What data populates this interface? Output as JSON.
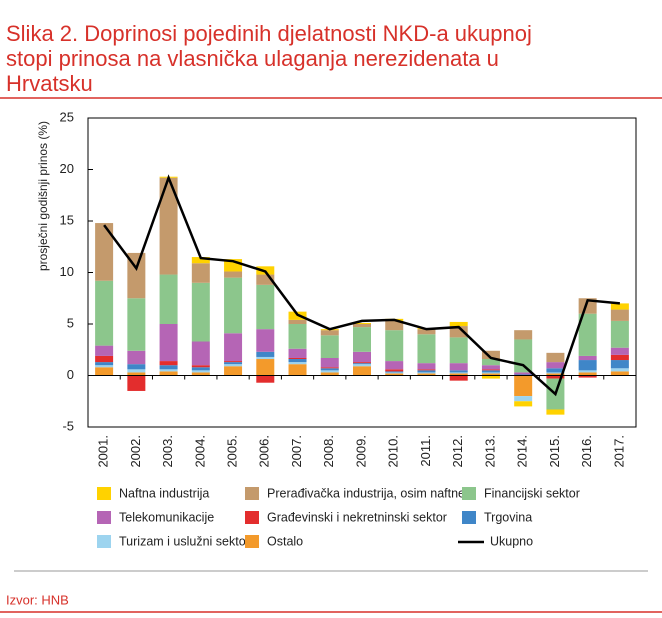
{
  "chart_data": {
    "type": "stacked-bar-line",
    "title": [
      "Slika 2. Doprinosi pojedinih djelatnosti NKD-a ukupnoj",
      "stopi prinosa na vlasnička ulaganja nerezidenata u",
      "Hrvatsku"
    ],
    "y_label": "prosječni godišnji prinos (%)",
    "source": "Izvor: HNB",
    "categories": [
      "2001.",
      "2002.",
      "2003.",
      "2004.",
      "2005.",
      "2006.",
      "2007.",
      "2008.",
      "2009.",
      "2010.",
      "2011.",
      "2012.",
      "2013.",
      "2014.",
      "2015.",
      "2016.",
      "2017."
    ],
    "ylim": [
      -5,
      25
    ],
    "yticks": [
      -5,
      0,
      5,
      10,
      15,
      20,
      25
    ],
    "series": [
      {
        "name": "Naftna industrija",
        "color": "#ffd200",
        "values": [
          0,
          0,
          0.1,
          0.6,
          1.2,
          0.8,
          0.8,
          0.1,
          0.1,
          0.2,
          0.1,
          0.4,
          -0.3,
          -0.5,
          -0.5,
          0,
          0.6
        ]
      },
      {
        "name": "Prerađivačka industrija, osim naftne",
        "color": "#c49a6c",
        "values": [
          5.6,
          4.4,
          9.4,
          1.9,
          0.6,
          1.0,
          0.4,
          0.5,
          0.3,
          0.9,
          0.5,
          1.1,
          0.8,
          0.9,
          0.9,
          1.5,
          1.1
        ]
      },
      {
        "name": "Financijski sektor",
        "color": "#8cc68c",
        "values": [
          6.3,
          5.1,
          4.8,
          5.7,
          5.4,
          4.3,
          2.4,
          2.2,
          2.4,
          3.0,
          2.8,
          2.5,
          0.6,
          3.2,
          -3.0,
          4.1,
          2.6
        ]
      },
      {
        "name": "Telekomunikacije",
        "color": "#b565b5",
        "values": [
          1.0,
          1.3,
          3.6,
          2.3,
          2.7,
          2.2,
          0.9,
          0.9,
          1.0,
          0.8,
          0.6,
          0.7,
          0.4,
          0.2,
          0.6,
          0.4,
          0.7
        ]
      },
      {
        "name": "Građevinski i nekretninski sektor",
        "color": "#e32d2d",
        "values": [
          0.6,
          -1.5,
          0.4,
          0.2,
          0.1,
          -0.7,
          0.1,
          0.1,
          0.1,
          0.2,
          0.1,
          -0.5,
          0.1,
          0,
          -0.3,
          -0.2,
          0.5
        ]
      },
      {
        "name": "Trgovina",
        "color": "#3f86c8",
        "values": [
          0.3,
          0.5,
          0.4,
          0.3,
          0.2,
          0.5,
          0.3,
          0.2,
          0.1,
          0.1,
          0.2,
          0.2,
          0.2,
          0.1,
          0.4,
          1.0,
          0.8
        ]
      },
      {
        "name": "Turizam i uslužni sektor",
        "color": "#9dd4ef",
        "values": [
          0.2,
          0.3,
          0.2,
          0.2,
          0.2,
          0.2,
          0.2,
          0.2,
          0.2,
          0.1,
          0.1,
          0.1,
          0.1,
          -0.5,
          0.1,
          0.2,
          0.3
        ]
      },
      {
        "name": "Ostalo",
        "color": "#f39a2b",
        "values": [
          0.8,
          0.3,
          0.4,
          0.3,
          0.9,
          1.6,
          1.1,
          0.3,
          0.9,
          0.2,
          0.2,
          0.2,
          0.2,
          -2.0,
          0.2,
          0.3,
          0.4
        ]
      }
    ],
    "line_series": {
      "name": "Ukupno",
      "color": "#000000",
      "values": [
        14.6,
        10.4,
        19.2,
        11.4,
        11.1,
        10.1,
        5.9,
        4.5,
        5.3,
        5.4,
        4.5,
        4.7,
        1.7,
        1.0,
        -1.8,
        7.3,
        7.0
      ]
    }
  }
}
